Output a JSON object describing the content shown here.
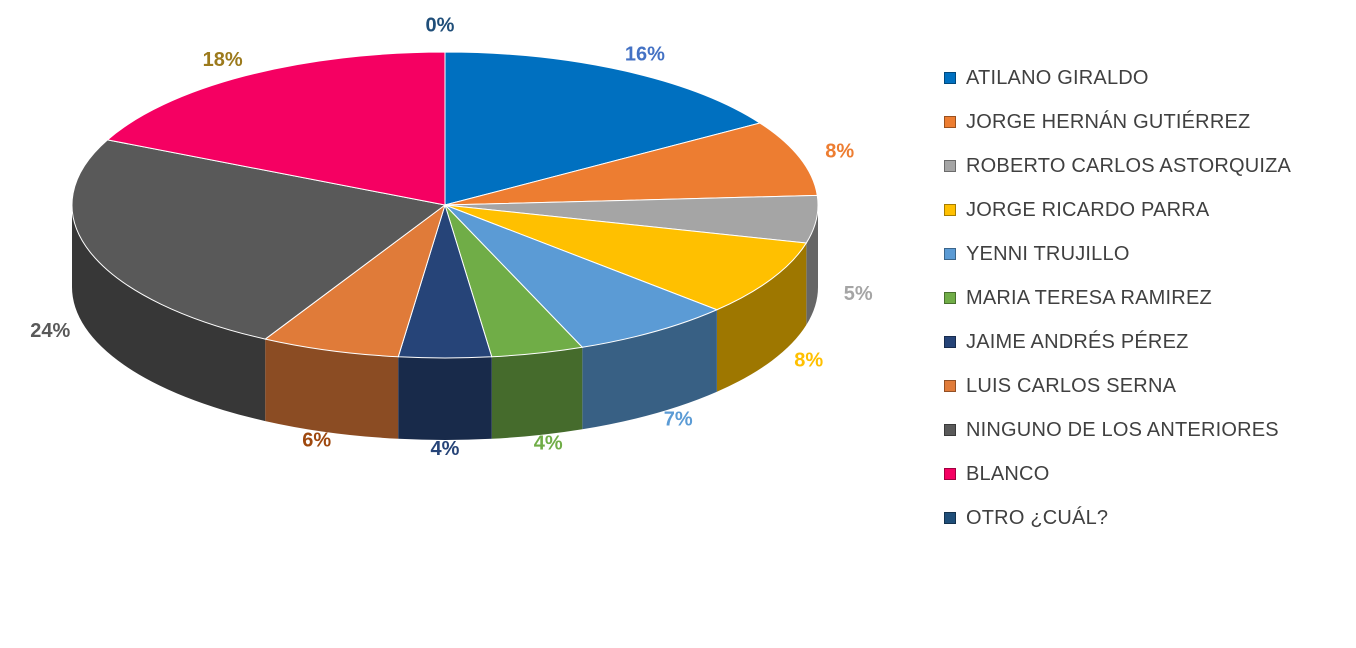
{
  "chart_data": {
    "type": "pie",
    "title": "",
    "categories": [
      "ATILANO GIRALDO",
      "JORGE HERNÁN GUTIÉRREZ",
      "ROBERTO CARLOS ASTORQUIZA",
      "JORGE RICARDO PARRA",
      "YENNI TRUJILLO",
      "MARIA TERESA RAMIREZ",
      "JAIME ANDRÉS PÉREZ",
      "LUIS CARLOS SERNA",
      "NINGUNO DE LOS ANTERIORES",
      "BLANCO",
      "OTRO ¿CUÁL?"
    ],
    "values": [
      16,
      8,
      5,
      8,
      7,
      4,
      4,
      6,
      24,
      18,
      0
    ],
    "data_labels": [
      "16%",
      "8%",
      "5%",
      "8%",
      "7%",
      "4%",
      "4%",
      "6%",
      "24%",
      "18%",
      "0%"
    ],
    "colors": [
      "#0070C0",
      "#ED7D31",
      "#A5A5A5",
      "#FFC000",
      "#5B9BD5",
      "#70AD47",
      "#264478",
      "#E07B39",
      "#595959",
      "#F50062",
      "#1F4E79"
    ],
    "label_colors": [
      "#4472C4",
      "#ED7D31",
      "#A5A5A5",
      "#FFC000",
      "#5B9BD5",
      "#70AD47",
      "#264478",
      "#9E480E",
      "#595959",
      "#9C7A1C",
      "#1F4E79"
    ],
    "legend_position": "right",
    "style": "3d-pie"
  }
}
